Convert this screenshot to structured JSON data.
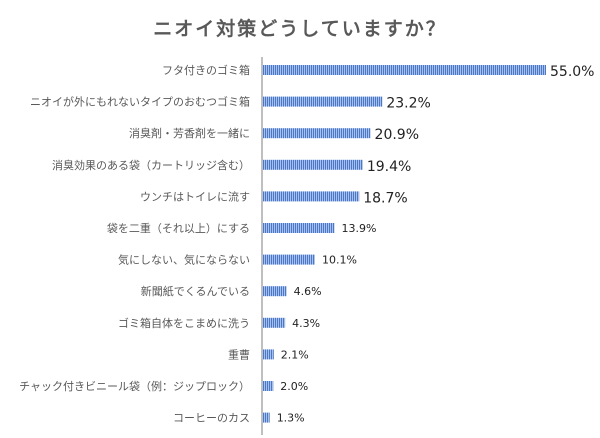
{
  "chart_data": {
    "type": "bar",
    "orientation": "horizontal",
    "title": "ニオイ対策どうしていますか？",
    "categories": [
      "フタ付きのゴミ箱",
      "ニオイが外にもれないタイプのおむつゴミ箱",
      "消臭剤・芳香剤を一緒に",
      "消臭効果のある袋（カートリッジ含む）",
      "ウンチはトイレに流す",
      "袋を二重（それ以上）にする",
      "気にしない、気にならない",
      "新聞紙でくるんでいる",
      "ゴミ箱自体をこまめに洗う",
      "重曹",
      "チャック付きビニール袋（例：ジップロック）",
      "コーヒーのカス"
    ],
    "values": [
      55.0,
      23.2,
      20.9,
      19.4,
      18.7,
      13.9,
      10.1,
      4.6,
      4.3,
      2.1,
      2.0,
      1.3
    ],
    "value_labels": [
      "55.0%",
      "23.2%",
      "20.9%",
      "19.4%",
      "18.7%",
      "13.9%",
      "10.1%",
      "4.6%",
      "4.3%",
      "2.1%",
      "2.0%",
      "1.3%"
    ],
    "unit": "%",
    "xlim": [
      0,
      55
    ],
    "grid": false,
    "bar_color": "#4a78c8"
  }
}
